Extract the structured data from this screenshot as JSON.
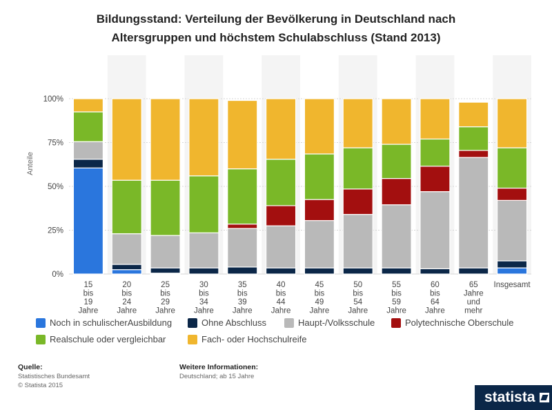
{
  "title_line1": "Bildungsstand: Verteilung der Bevölkerung in Deutschland nach",
  "title_line2": "Altersgruppen und höchstem Schulabschluss (Stand 2013)",
  "footer": {
    "source_heading": "Quelle:",
    "source_line1": "Statistisches Bundesamt",
    "source_line2": "© Statista 2015",
    "info_heading": "Weitere Informationen:",
    "info_line1": "Deutschland; ab 15 Jahre"
  },
  "logo_text": "statista",
  "chart_data": {
    "type": "bar",
    "stacked": true,
    "ylabel": "Anteile",
    "ylim": [
      0,
      100
    ],
    "yticks": [
      "0%",
      "25%",
      "50%",
      "75%",
      "100%"
    ],
    "categories": [
      [
        "15",
        "bis",
        "19",
        "Jahre"
      ],
      [
        "20",
        "bis",
        "24",
        "Jahre"
      ],
      [
        "25",
        "bis",
        "29",
        "Jahre"
      ],
      [
        "30",
        "bis",
        "34",
        "Jahre"
      ],
      [
        "35",
        "bis",
        "39",
        "Jahre"
      ],
      [
        "40",
        "bis",
        "44",
        "Jahre"
      ],
      [
        "45",
        "bis",
        "49",
        "Jahre"
      ],
      [
        "50",
        "bis",
        "54",
        "Jahre"
      ],
      [
        "55",
        "bis",
        "59",
        "Jahre"
      ],
      [
        "60",
        "bis",
        "64",
        "Jahre"
      ],
      [
        "65",
        "Jahre",
        "und",
        "mehr"
      ],
      [
        "Insgesamt"
      ]
    ],
    "series": [
      {
        "name": "Noch in schulischerAusbildung",
        "color": "#2a76dd",
        "values": [
          60.5,
          2.5,
          0.5,
          0,
          0,
          0,
          0,
          0,
          0,
          0,
          0,
          3.5
        ]
      },
      {
        "name": "Ohne Abschluss",
        "color": "#0b2748",
        "values": [
          5,
          3,
          3,
          3.5,
          4,
          3.5,
          3.5,
          3.5,
          3.5,
          3,
          3.5,
          4
        ]
      },
      {
        "name": "Haupt-/Volksschule",
        "color": "#b9b9b9",
        "values": [
          10,
          17.5,
          18.5,
          20,
          22,
          24,
          27,
          30.5,
          36,
          44,
          63,
          34.5
        ]
      },
      {
        "name": "Polytechnische Oberschule",
        "color": "#a30f0f",
        "values": [
          0,
          0,
          0,
          0,
          2.5,
          11.5,
          12,
          14.5,
          15,
          14.5,
          4,
          7
        ]
      },
      {
        "name": "Realschule oder vergleichbar",
        "color": "#7ab828",
        "values": [
          17,
          30.5,
          31.5,
          32.5,
          31.5,
          26.5,
          26,
          23.5,
          19.5,
          15.5,
          13.5,
          23
        ]
      },
      {
        "name": "Fach- oder Hochschulreife",
        "color": "#f0b62e",
        "values": [
          7.5,
          46.5,
          46.5,
          44,
          39,
          34.5,
          31.5,
          28,
          26,
          23,
          14,
          28
        ]
      }
    ]
  }
}
